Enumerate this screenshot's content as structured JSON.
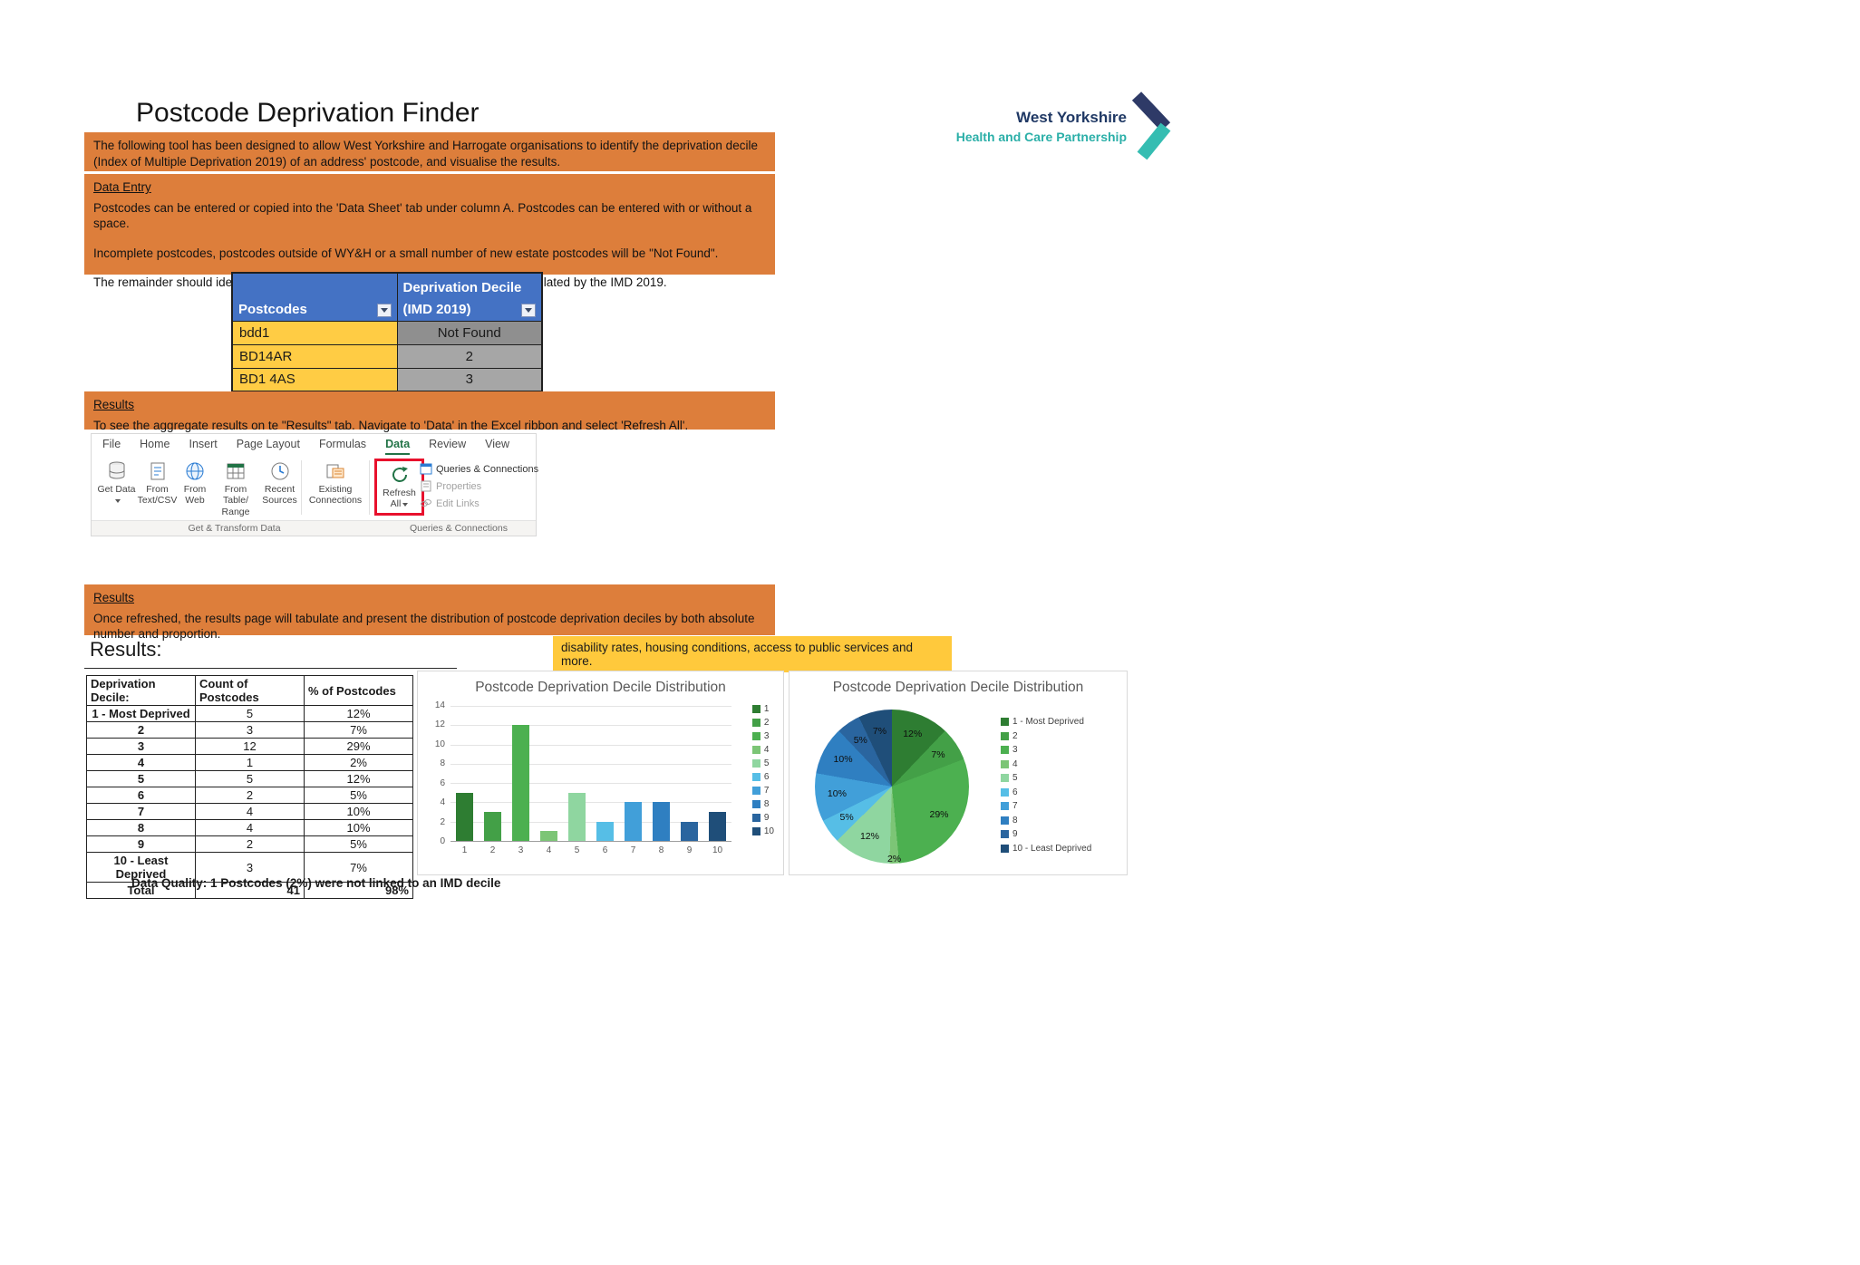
{
  "page": {
    "title": "Postcode Deprivation Finder"
  },
  "logo": {
    "name_line": "West Yorkshire",
    "sub_line": "Health and Care Partnership"
  },
  "intro": {
    "text": "The following tool has been designed to allow West Yorkshire and Harrogate organisations to identify the deprivation decile (Index of Multiple Deprivation 2019) of an address' postcode, and visualise the results."
  },
  "data_entry": {
    "heading": "Data Entry",
    "p1": "Postcodes can be entered or copied into the 'Data Sheet' tab under column A. Postcodes can be entered with or without a space.",
    "p2": "Incomplete postcodes, postcodes outside of WY&H or a small number of new estate postcodes will be \"Not Found\".",
    "p3": "The remainder should identify the deprivation decile the postcode falls into as calculated by the IMD 2019."
  },
  "sample_table": {
    "postcodes_header": "Postcodes",
    "decile_header_line1": "Deprivation Decile",
    "decile_header_line2": "(IMD 2019)",
    "rows": [
      {
        "postcode": "bdd1",
        "decile": "Not Found"
      },
      {
        "postcode": "BD14AR",
        "decile": "2"
      },
      {
        "postcode": "BD1 4AS",
        "decile": "3"
      }
    ]
  },
  "results_refresh": {
    "heading": "Results",
    "text": "To see the aggregate results on te \"Results\" tab. Navigate to 'Data' in the Excel ribbon and select 'Refresh All'."
  },
  "ribbon": {
    "tabs": [
      "File",
      "Home",
      "Insert",
      "Page Layout",
      "Formulas",
      "Data",
      "Review",
      "View"
    ],
    "active_tab": "Data",
    "buttons": {
      "get_data": "Get Data",
      "from_text_csv": "From Text/CSV",
      "from_web": "From Web",
      "from_table_range": "From Table/ Range",
      "recent_sources": "Recent Sources",
      "existing_connections": "Existing Connections",
      "refresh_all": "Refresh All",
      "queries_connections": "Queries & Connections",
      "properties": "Properties",
      "edit_links": "Edit Links"
    },
    "group_labels": {
      "left": "Get & Transform Data",
      "right": "Queries & Connections"
    }
  },
  "results_overview": {
    "heading": "Results",
    "text": "Once refreshed, the results page will tabulate and present the distribution of postcode deprivation deciles by both absolute number and proportion."
  },
  "results_section": {
    "heading": "Results:",
    "highlight": "disability rates, housing conditions, access to public services and more."
  },
  "results_table": {
    "headers": [
      "Deprivation Decile:",
      "Count of Postcodes",
      "% of Postcodes"
    ],
    "rows": [
      [
        "1 - Most Deprived",
        "5",
        "12%"
      ],
      [
        "2",
        "3",
        "7%"
      ],
      [
        "3",
        "12",
        "29%"
      ],
      [
        "4",
        "1",
        "2%"
      ],
      [
        "5",
        "5",
        "12%"
      ],
      [
        "6",
        "2",
        "5%"
      ],
      [
        "7",
        "4",
        "10%"
      ],
      [
        "8",
        "4",
        "10%"
      ],
      [
        "9",
        "2",
        "5%"
      ],
      [
        "10 - Least Deprived",
        "3",
        "7%"
      ]
    ],
    "total": [
      "Total",
      "41",
      "98%"
    ]
  },
  "chart_data": [
    {
      "type": "bar",
      "title": "Postcode Deprivation Decile Distribution",
      "categories": [
        "1",
        "2",
        "3",
        "4",
        "5",
        "6",
        "7",
        "8",
        "9",
        "10"
      ],
      "values": [
        5,
        3,
        12,
        1,
        5,
        2,
        4,
        4,
        2,
        3
      ],
      "xlabel": "",
      "ylabel": "",
      "ylim": [
        0,
        14
      ],
      "yticks": [
        0,
        2,
        4,
        6,
        8,
        10,
        12,
        14
      ],
      "grid": true,
      "legend": [
        "1",
        "2",
        "3",
        "4",
        "5",
        "6",
        "7",
        "8",
        "9",
        "10"
      ],
      "legend_position": "right"
    },
    {
      "type": "pie",
      "title": "Postcode Deprivation Decile Distribution",
      "labels": [
        "1 - Most Deprived",
        "2",
        "3",
        "4",
        "5",
        "6",
        "7",
        "8",
        "9",
        "10 - Least Deprived"
      ],
      "values_pct": [
        12,
        7,
        29,
        2,
        12,
        5,
        10,
        10,
        5,
        7
      ],
      "data_labels": [
        "12%",
        "7%",
        "29%",
        "2%",
        "12%",
        "5%",
        "10%",
        "10%",
        "5%",
        "7%"
      ],
      "legend_position": "right"
    }
  ],
  "footer": {
    "label": "Data Quality:",
    "text": "1 Postcodes (2%) were not linked to an IMD decile"
  },
  "colors": {
    "banner_orange": "#DD7E3B",
    "table_header_blue": "#4472C4",
    "postcode_cell_yellow": "#FFCC44",
    "result_cell_gray": "#A6A6A6",
    "highlight_yellow": "#FFC93C",
    "excel_green": "#217346",
    "refresh_box_red": "#E8112D",
    "logo_navy": "#1F3864",
    "logo_teal": "#2BAFA8",
    "decile_colors": [
      "#2E7D32",
      "#43A047",
      "#4CB050",
      "#7CC576",
      "#8FD6A0",
      "#56BEE6",
      "#419FD9",
      "#2F7FC1",
      "#2A659F",
      "#1F4E79"
    ]
  }
}
